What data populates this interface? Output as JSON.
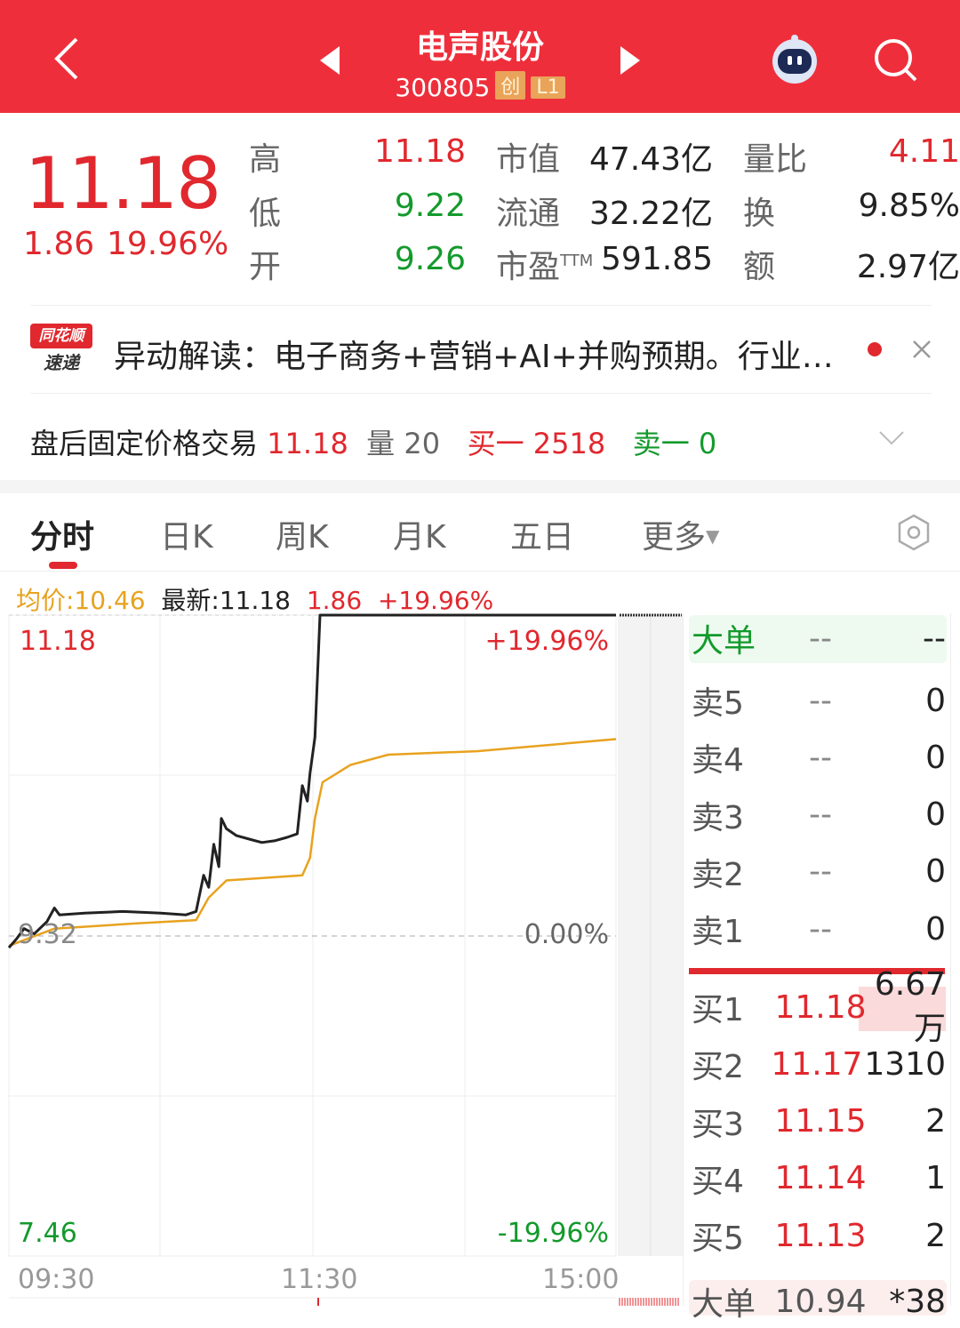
{
  "header": {
    "title": "电声股份",
    "code": "300805",
    "tags": [
      "创",
      "L1"
    ],
    "bg_color": "#ee2f3b"
  },
  "quote": {
    "price": "11.18",
    "change": "1.86",
    "change_pct": "19.96%",
    "stats": [
      {
        "label": "高",
        "value": "11.18",
        "color": "red"
      },
      {
        "label": "低",
        "value": "9.22",
        "color": "green"
      },
      {
        "label": "开",
        "value": "9.26",
        "color": "green"
      },
      {
        "label": "市值",
        "value": "47.43亿"
      },
      {
        "label": "流通",
        "value": "32.22亿"
      },
      {
        "label": "市盈",
        "sup": "TTM",
        "value": "591.85"
      },
      {
        "label": "量比",
        "value": "4.11",
        "color": "red"
      },
      {
        "label": "换",
        "value": "9.85%"
      },
      {
        "label": "额",
        "value": "2.97亿"
      }
    ]
  },
  "news": {
    "logo_top": "同花顺",
    "logo_bottom": "速递",
    "text": "异动解读：电子商务+营销+AI+并购预期。行业…"
  },
  "after_hours": {
    "label": "盘后固定价格交易",
    "price": "11.18",
    "vol_label": "量",
    "vol": "20",
    "buy_label": "买一",
    "buy": "2518",
    "sell_label": "卖一",
    "sell": "0"
  },
  "tabs": [
    {
      "label": "分时",
      "active": true
    },
    {
      "label": "日K"
    },
    {
      "label": "周K"
    },
    {
      "label": "月K"
    },
    {
      "label": "五日"
    },
    {
      "label": "更多"
    }
  ],
  "info_bar": {
    "avg": "均价:10.46",
    "latest": "最新:11.18",
    "change": "1.86",
    "pct": "+19.96%"
  },
  "chart_data": {
    "type": "line",
    "y_left_ticks": [
      "11.18",
      "9.32",
      "7.46"
    ],
    "y_right_ticks": [
      "+19.96%",
      "0.00%",
      "-19.96%"
    ],
    "x_ticks": [
      "09:30",
      "11:30",
      "15:00"
    ],
    "ylim": [
      7.46,
      11.18
    ],
    "series": [
      {
        "key": "price",
        "color": "#222222",
        "points": [
          [
            "09:30",
            9.25
          ],
          [
            "09:33",
            9.3
          ],
          [
            "09:36",
            9.36
          ],
          [
            "09:40",
            9.33
          ],
          [
            "09:45",
            9.4
          ],
          [
            "09:48",
            9.48
          ],
          [
            "09:50",
            9.44
          ],
          [
            "10:00",
            9.45
          ],
          [
            "10:15",
            9.46
          ],
          [
            "10:30",
            9.45
          ],
          [
            "10:40",
            9.44
          ],
          [
            "10:44",
            9.46
          ],
          [
            "10:47",
            9.67
          ],
          [
            "10:49",
            9.6
          ],
          [
            "10:51",
            9.85
          ],
          [
            "10:53",
            9.72
          ],
          [
            "10:54",
            10.0
          ],
          [
            "10:56",
            9.94
          ],
          [
            "11:00",
            9.9
          ],
          [
            "11:05",
            9.88
          ],
          [
            "11:10",
            9.86
          ],
          [
            "11:15",
            9.87
          ],
          [
            "11:20",
            9.89
          ],
          [
            "11:24",
            9.91
          ],
          [
            "11:26",
            10.19
          ],
          [
            "11:28",
            10.1
          ],
          [
            "11:29",
            10.26
          ],
          [
            "13:01",
            10.47
          ],
          [
            "13:03",
            11.18
          ],
          [
            "15:00",
            11.18
          ]
        ]
      },
      {
        "key": "avg",
        "color": "#e8a21f",
        "points": [
          [
            "09:30",
            9.26
          ],
          [
            "09:48",
            9.36
          ],
          [
            "10:20",
            9.39
          ],
          [
            "10:44",
            9.41
          ],
          [
            "10:49",
            9.54
          ],
          [
            "10:56",
            9.64
          ],
          [
            "11:26",
            9.67
          ],
          [
            "11:29",
            9.77
          ],
          [
            "13:01",
            10.0
          ],
          [
            "13:04",
            10.21
          ],
          [
            "13:15",
            10.31
          ],
          [
            "13:30",
            10.37
          ],
          [
            "14:05",
            10.39
          ],
          [
            "15:00",
            10.46
          ]
        ]
      }
    ]
  },
  "orderbook": {
    "big_top": {
      "label": "大单",
      "a": "--",
      "b": "--"
    },
    "sells": [
      {
        "label": "卖5",
        "price": "--",
        "vol": "0"
      },
      {
        "label": "卖4",
        "price": "--",
        "vol": "0"
      },
      {
        "label": "卖3",
        "price": "--",
        "vol": "0"
      },
      {
        "label": "卖2",
        "price": "--",
        "vol": "0"
      },
      {
        "label": "卖1",
        "price": "--",
        "vol": "0"
      }
    ],
    "buys": [
      {
        "label": "买1",
        "price": "11.18",
        "vol": "6.67万"
      },
      {
        "label": "买2",
        "price": "11.17",
        "vol": "1310"
      },
      {
        "label": "买3",
        "price": "11.15",
        "vol": "2"
      },
      {
        "label": "买4",
        "price": "11.14",
        "vol": "1"
      },
      {
        "label": "买5",
        "price": "11.13",
        "vol": "2"
      }
    ],
    "big_bottom": {
      "label": "大单",
      "price": "10.94",
      "vol": "*38"
    }
  }
}
